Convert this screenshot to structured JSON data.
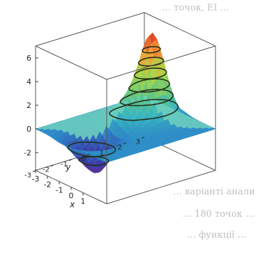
{
  "chart_data": {
    "type": "surface3d",
    "title": "",
    "xlabel": "x",
    "ylabel": "y",
    "zlabel": "",
    "x_ticks": [
      "-3",
      "-2",
      "-1",
      "0",
      "1"
    ],
    "y_ticks": [
      "-3",
      "-2",
      "-1",
      "0",
      "1",
      "2",
      "3"
    ],
    "z_ticks": [
      "-2",
      "0",
      "2",
      "4",
      "6"
    ],
    "xlim": [
      -3,
      3
    ],
    "ylim": [
      -3,
      3
    ],
    "zlim": [
      -3.5,
      7
    ],
    "peak": {
      "x": 0,
      "y": 1.5,
      "z": 7
    },
    "trough": {
      "x": 0,
      "y": -1.5,
      "z": -3
    },
    "plane_z": 0,
    "contour_levels": [
      -2,
      -1,
      1,
      2,
      3,
      4,
      5,
      6
    ],
    "colormap": [
      "#6a2c8a",
      "#3a3ea8",
      "#2d86c8",
      "#3ab8c0",
      "#6cc77a",
      "#a8d84a",
      "#f2a23a",
      "#e0402a"
    ],
    "plane_color": "#6ed0bd",
    "box_color": "#555555"
  },
  "background_text": [
    "… точок, ЕІ …",
    "… варіанті анали …",
    "… 180 точок …",
    "… функції …"
  ]
}
